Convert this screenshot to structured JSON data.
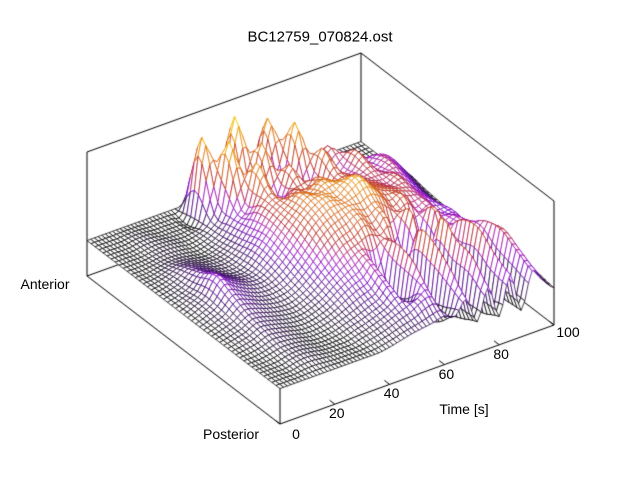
{
  "title": "BC12759_070824.ost",
  "labels": {
    "anterior": "Anterior",
    "posterior": "Posterior",
    "time_axis": "Time [s]"
  },
  "colors": {
    "background": "#ffffff",
    "frame": "#000000",
    "text": "#000000",
    "palette": [
      [
        0.0,
        "#000000"
      ],
      [
        0.1,
        "#240046"
      ],
      [
        0.2,
        "#50008c"
      ],
      [
        0.3,
        "#8000c8"
      ],
      [
        0.4,
        "#a912aa"
      ],
      [
        0.5,
        "#b42222"
      ],
      [
        0.62,
        "#c84614"
      ],
      [
        0.75,
        "#e07808"
      ],
      [
        0.88,
        "#f0a800"
      ],
      [
        1.0,
        "#ffe000"
      ]
    ]
  },
  "chart_data": {
    "type": "surface",
    "title": "BC12759_070824.ost",
    "x": {
      "label": "Time [s]",
      "unit": "s",
      "range": [
        0,
        100
      ],
      "ticks": [
        0,
        20,
        40,
        60,
        80,
        100
      ],
      "values": [
        0,
        4,
        8,
        12,
        16,
        20,
        24,
        28,
        32,
        36,
        40,
        44,
        48,
        52,
        56,
        60,
        64,
        68,
        72,
        76,
        80,
        84,
        88,
        92,
        96,
        100
      ]
    },
    "y": {
      "label_start": "Posterior",
      "label_end": "Anterior",
      "rows": 13,
      "order": "posterior_to_anterior"
    },
    "z_axis": {
      "range": [
        -0.4,
        1.0
      ],
      "baseline": 0
    },
    "z": [
      [
        0,
        0,
        0,
        0,
        0,
        0,
        0,
        0,
        0,
        0,
        0.02,
        0.05,
        0.08,
        0.1,
        0.12,
        0.15,
        0.1,
        0.25,
        -0.05,
        0.3,
        -0.08,
        0.35,
        -0.1,
        0.3,
        0.15,
        0.02
      ],
      [
        0,
        0,
        0,
        0.03,
        0.04,
        0.02,
        0,
        0,
        0,
        0.03,
        0.06,
        0.1,
        0.15,
        0.2,
        0.25,
        0.3,
        -0.1,
        0.45,
        -0.15,
        0.5,
        -0.18,
        0.45,
        -0.12,
        0.4,
        0.2,
        0.05
      ],
      [
        0,
        0,
        0.02,
        0.05,
        0.05,
        0.03,
        0,
        0,
        0.02,
        0.06,
        0.1,
        0.15,
        0.2,
        0.3,
        -0.08,
        0.5,
        -0.2,
        0.6,
        -0.22,
        0.55,
        -0.2,
        0.6,
        -0.15,
        0.5,
        0.25,
        0.08
      ],
      [
        0,
        0.02,
        0.05,
        0.1,
        0.08,
        0.05,
        0.02,
        0.02,
        0.05,
        0.1,
        0.18,
        0.25,
        0.3,
        0.4,
        -0.1,
        0.55,
        -0.15,
        0.6,
        -0.18,
        0.65,
        -0.15,
        0.55,
        0.3,
        0.45,
        0.2,
        0.05
      ],
      [
        0,
        0.03,
        0.07,
        0.14,
        0.12,
        0.08,
        0.05,
        0.04,
        0.08,
        0.15,
        0.25,
        0.35,
        0.45,
        0.5,
        0.55,
        0.5,
        0.55,
        -0.05,
        0.6,
        -0.08,
        0.55,
        0.35,
        0.4,
        0.3,
        0.12,
        0
      ],
      [
        0,
        0.04,
        0.1,
        0.22,
        0.18,
        0.12,
        0.08,
        0.08,
        0.12,
        0.22,
        0.35,
        0.5,
        0.6,
        0.65,
        0.7,
        0.65,
        0.7,
        0.6,
        0.5,
        0.55,
        0.4,
        0.45,
        0.3,
        0.3,
        0.12,
        0
      ],
      [
        0,
        0.05,
        0.12,
        0.3,
        0.22,
        0.15,
        0.1,
        0.1,
        0.18,
        0.3,
        0.45,
        0.6,
        0.7,
        0.75,
        0.7,
        0.8,
        0.85,
        0.7,
        0.6,
        0.55,
        0.5,
        0.45,
        0.35,
        0.25,
        0.1,
        0
      ],
      [
        0,
        0.03,
        0.08,
        0.2,
        0.16,
        0.1,
        0.06,
        0.08,
        0.2,
        0.35,
        0.5,
        0.6,
        0.7,
        0.65,
        0.75,
        0.7,
        0.65,
        0.6,
        0.55,
        0.5,
        0.45,
        0.5,
        0.35,
        0.25,
        0.1,
        0
      ],
      [
        0,
        0.02,
        0.06,
        0.12,
        0.1,
        0.06,
        0.04,
        0.06,
        0.15,
        0.3,
        0.5,
        0.6,
        0.45,
        0.55,
        0.5,
        0.6,
        0.45,
        0.55,
        0.5,
        0.45,
        0.5,
        0.4,
        0.45,
        0.3,
        0.15,
        0.02
      ],
      [
        0,
        0,
        0.02,
        0.04,
        0.04,
        0.02,
        0,
        0.03,
        0.1,
        0.25,
        0.4,
        0.8,
        0.3,
        0.35,
        0.65,
        0.3,
        0.35,
        0.7,
        0.35,
        0.4,
        0.55,
        0.35,
        0.4,
        0.35,
        0.2,
        0.05
      ],
      [
        0,
        0,
        0,
        0.02,
        0.03,
        0.02,
        0,
        0.02,
        0.08,
        0.3,
        0.95,
        0.2,
        0.3,
        0.8,
        0.25,
        0.3,
        0.9,
        0.3,
        0.35,
        0.5,
        0.3,
        0.25,
        0.2,
        0.1,
        0.05,
        0
      ],
      [
        0,
        0,
        0,
        0.02,
        0.02,
        0,
        0,
        0,
        0.05,
        0.9,
        0.15,
        0.2,
        1.0,
        0.2,
        0.25,
        0.85,
        0.2,
        0.2,
        0.15,
        0.1,
        0.08,
        0.05,
        0.03,
        0.02,
        0,
        0
      ],
      [
        0,
        0,
        0,
        0,
        0,
        0,
        0,
        0,
        0,
        0,
        0,
        0,
        0,
        0,
        0,
        0,
        0,
        0,
        0,
        0,
        0,
        0,
        0,
        0,
        0,
        0
      ]
    ]
  }
}
